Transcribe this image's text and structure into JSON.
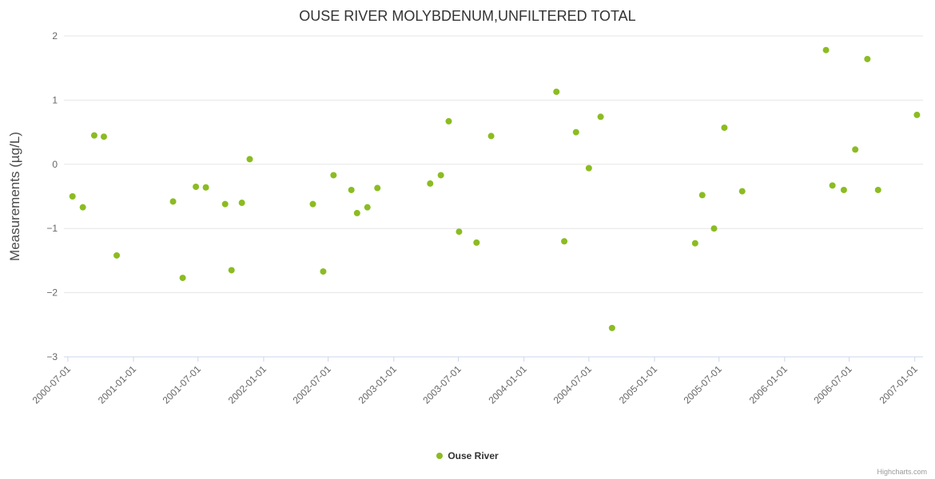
{
  "credits": {
    "label": "Highcharts.com"
  },
  "chart_data": {
    "type": "scatter",
    "title": "OUSE RIVER MOLYBDENUM,UNFILTERED TOTAL",
    "xlabel": "",
    "ylabel": "Measurements (µg/L)",
    "x_type": "datetime",
    "x_range": [
      "2000-06-20",
      "2007-01-24"
    ],
    "ylim": [
      -3,
      2
    ],
    "yticks": [
      2,
      1,
      0,
      -1,
      -2,
      -3
    ],
    "grid": "horizontal",
    "legend_position": "bottom-center",
    "axis_color": "#ccd6eb",
    "grid_color": "#e6e6e6",
    "xticks": [
      {
        "value": "2000-07-01",
        "label": "2000-07-01"
      },
      {
        "value": "2001-01-01",
        "label": "2001-01-01"
      },
      {
        "value": "2001-07-01",
        "label": "2001-07-01"
      },
      {
        "value": "2002-01-01",
        "label": "2002-01-01"
      },
      {
        "value": "2002-07-01",
        "label": "2002-07-01"
      },
      {
        "value": "2003-01-01",
        "label": "2003-01-01"
      },
      {
        "value": "2003-07-01",
        "label": "2003-07-01"
      },
      {
        "value": "2004-01-01",
        "label": "2004-01-01"
      },
      {
        "value": "2004-07-01",
        "label": "2004-07-01"
      },
      {
        "value": "2005-01-01",
        "label": "2005-01-01"
      },
      {
        "value": "2005-07-01",
        "label": "2005-07-01"
      },
      {
        "value": "2006-01-01",
        "label": "2006-01-01"
      },
      {
        "value": "2006-07-01",
        "label": "2006-07-01"
      },
      {
        "value": "2007-01-01",
        "label": "2007-01-01"
      }
    ],
    "series": [
      {
        "name": "Ouse River",
        "color": "#8bbc21",
        "marker": "circle",
        "marker_radius": 4,
        "points": [
          [
            "2000-07-14",
            -0.5
          ],
          [
            "2000-08-12",
            -0.67
          ],
          [
            "2000-09-13",
            0.45
          ],
          [
            "2000-10-10",
            0.43
          ],
          [
            "2000-11-15",
            -1.42
          ],
          [
            "2001-04-22",
            -0.58
          ],
          [
            "2001-05-19",
            -1.77
          ],
          [
            "2001-06-25",
            -0.35
          ],
          [
            "2001-07-23",
            -0.36
          ],
          [
            "2001-09-15",
            -0.62
          ],
          [
            "2001-10-03",
            -1.65
          ],
          [
            "2001-11-01",
            -0.6
          ],
          [
            "2001-11-23",
            0.08
          ],
          [
            "2002-05-19",
            -0.62
          ],
          [
            "2002-06-17",
            -1.67
          ],
          [
            "2002-07-16",
            -0.17
          ],
          [
            "2002-09-04",
            -0.4
          ],
          [
            "2002-09-20",
            -0.76
          ],
          [
            "2002-10-19",
            -0.67
          ],
          [
            "2002-11-16",
            -0.37
          ],
          [
            "2003-04-13",
            -0.3
          ],
          [
            "2003-05-13",
            -0.17
          ],
          [
            "2003-06-04",
            0.67
          ],
          [
            "2003-07-03",
            -1.05
          ],
          [
            "2003-08-21",
            -1.22
          ],
          [
            "2003-10-01",
            0.44
          ],
          [
            "2004-04-01",
            1.13
          ],
          [
            "2004-04-23",
            -1.2
          ],
          [
            "2004-05-26",
            0.5
          ],
          [
            "2004-07-01",
            -0.06
          ],
          [
            "2004-08-03",
            0.74
          ],
          [
            "2004-09-04",
            -2.55
          ],
          [
            "2005-04-25",
            -1.23
          ],
          [
            "2005-05-15",
            -0.48
          ],
          [
            "2005-06-17",
            -1.0
          ],
          [
            "2005-07-16",
            0.57
          ],
          [
            "2005-09-04",
            -0.42
          ],
          [
            "2006-04-27",
            1.78
          ],
          [
            "2006-05-15",
            -0.33
          ],
          [
            "2006-06-16",
            -0.4
          ],
          [
            "2006-07-18",
            0.23
          ],
          [
            "2006-08-21",
            1.64
          ],
          [
            "2006-09-20",
            -0.4
          ],
          [
            "2007-01-07",
            0.77
          ]
        ]
      }
    ]
  }
}
